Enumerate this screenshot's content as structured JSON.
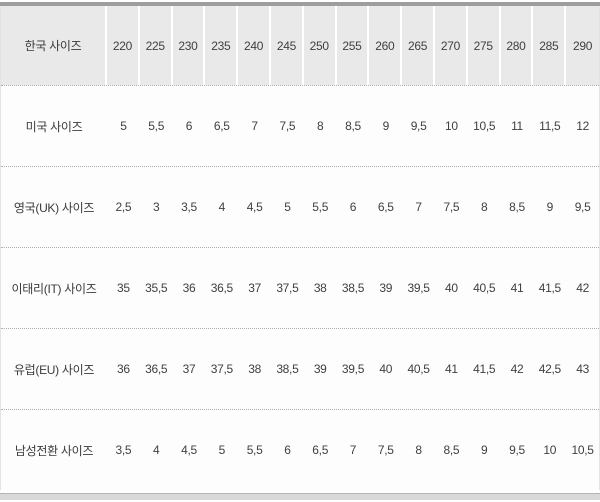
{
  "colors": {
    "header_cell_bg": "#e9e9e9",
    "header_separator": "#ffffff",
    "row_divider_dotted": "#ababab",
    "top_border_band": "#9e9e9e",
    "bottom_border_band": "#d8d8d8",
    "text": "#3f3f3f",
    "background": "#fdfdfd"
  },
  "chart_data": {
    "type": "table",
    "title": "",
    "description_not_shown": null,
    "rows": [
      {
        "label": "한국 사이즈",
        "is_header": true,
        "values": [
          "220",
          "225",
          "230",
          "235",
          "240",
          "245",
          "250",
          "255",
          "260",
          "265",
          "270",
          "275",
          "280",
          "285",
          "290"
        ]
      },
      {
        "label": "미국 사이즈",
        "is_header": false,
        "values": [
          "5",
          "5,5",
          "6",
          "6,5",
          "7",
          "7,5",
          "8",
          "8,5",
          "9",
          "9,5",
          "10",
          "10,5",
          "11",
          "11,5",
          "12"
        ]
      },
      {
        "label": "영국(UK) 사이즈",
        "is_header": false,
        "values": [
          "2,5",
          "3",
          "3,5",
          "4",
          "4,5",
          "5",
          "5,5",
          "6",
          "6,5",
          "7",
          "7,5",
          "8",
          "8,5",
          "9",
          "9,5"
        ]
      },
      {
        "label": "이태리(IT) 사이즈",
        "is_header": false,
        "values": [
          "35",
          "35,5",
          "36",
          "36,5",
          "37",
          "37,5",
          "38",
          "38,5",
          "39",
          "39,5",
          "40",
          "40,5",
          "41",
          "41,5",
          "42"
        ]
      },
      {
        "label": "유럽(EU) 사이즈",
        "is_header": false,
        "values": [
          "36",
          "36,5",
          "37",
          "37,5",
          "38",
          "38,5",
          "39",
          "39,5",
          "40",
          "40,5",
          "41",
          "41,5",
          "42",
          "42,5",
          "43"
        ]
      },
      {
        "label": "남성전환 사이즈",
        "is_header": false,
        "values": [
          "3,5",
          "4",
          "4,5",
          "5",
          "5,5",
          "6",
          "6,5",
          "7",
          "7,5",
          "8",
          "8,5",
          "9",
          "9,5",
          "10",
          "10,5"
        ]
      }
    ]
  }
}
